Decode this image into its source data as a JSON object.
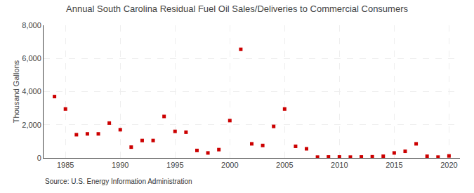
{
  "chart_data": {
    "type": "scatter",
    "title": "Annual South Carolina Residual Fuel Oil Sales/Deliveries to Commercial Consumers",
    "ylabel": "Thousand Gallons",
    "annotations": [
      "Source: U.S. Energy Information Administration"
    ],
    "x": [
      1984,
      1985,
      1986,
      1987,
      1988,
      1989,
      1990,
      1991,
      1992,
      1993,
      1994,
      1995,
      1996,
      1997,
      1998,
      1999,
      2000,
      2001,
      2002,
      2003,
      2004,
      2005,
      2006,
      2007,
      2008,
      2009,
      2010,
      2011,
      2012,
      2013,
      2014,
      2015,
      2016,
      2017,
      2018,
      2019,
      2020
    ],
    "values": [
      3700,
      2950,
      1400,
      1450,
      1450,
      2100,
      1700,
      650,
      1050,
      1050,
      2500,
      1600,
      1550,
      450,
      300,
      500,
      2250,
      6550,
      850,
      750,
      1900,
      2950,
      700,
      550,
      50,
      60,
      60,
      50,
      60,
      70,
      100,
      300,
      400,
      850,
      100,
      50,
      120
    ],
    "color": "#cc0000",
    "marker": "square",
    "xlim": [
      1983,
      2021
    ],
    "xticks": [
      1985,
      1990,
      1995,
      2000,
      2005,
      2010,
      2015,
      2020
    ],
    "ylim": [
      0,
      8000
    ],
    "yticks": [
      0,
      {
        "value": 2000,
        "label": "2,000"
      },
      {
        "value": 4000,
        "label": "4,000"
      },
      {
        "value": 6000,
        "label": "6,000"
      },
      {
        "value": 8000,
        "label": "8,000"
      }
    ],
    "grid": true
  }
}
